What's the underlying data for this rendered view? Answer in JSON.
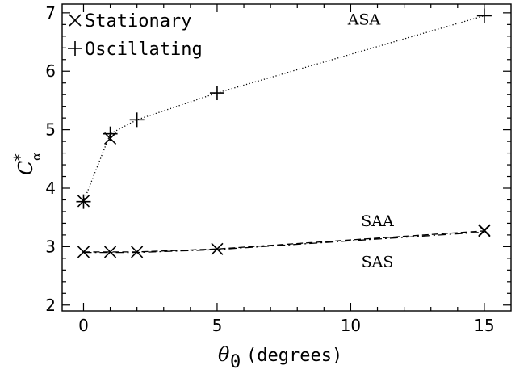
{
  "chart_data": {
    "type": "line",
    "xlabel": "θ0 (degrees)",
    "ylabel": "C*α",
    "xlim": [
      -0.8,
      16
    ],
    "ylim": [
      1.9,
      7.15
    ],
    "xticks": [
      0,
      5,
      10,
      15
    ],
    "yticks": [
      2,
      3,
      4,
      5,
      6,
      7
    ],
    "grid": false,
    "legend_position": "top-left",
    "legend": [
      {
        "marker": "x",
        "label": "Stationary"
      },
      {
        "marker": "+",
        "label": "Oscillating"
      }
    ],
    "series": [
      {
        "name": "Oscillating",
        "marker": "+",
        "line": "dotted",
        "x": [
          0,
          1,
          2,
          5,
          15
        ],
        "y": [
          3.77,
          4.93,
          5.17,
          5.63,
          6.95
        ]
      },
      {
        "name": "Stationary",
        "marker": "x",
        "line": "none",
        "x": [
          0,
          1,
          15
        ],
        "y": [
          3.78,
          4.85,
          3.28
        ]
      },
      {
        "name": "Stationary",
        "marker": "x",
        "line": "dashed",
        "x": [
          0,
          1,
          2,
          5,
          15
        ],
        "y": [
          2.91,
          2.91,
          2.91,
          2.96,
          3.27
        ]
      },
      {
        "name": "",
        "marker": "none",
        "line": "dash-dot",
        "x": [
          0,
          1,
          2,
          5,
          15
        ],
        "y": [
          2.9,
          2.9,
          2.9,
          2.95,
          3.25
        ]
      }
    ],
    "annotations": [
      {
        "text": "ASA",
        "x": 10.5,
        "y": 6.8
      },
      {
        "text": "SAA",
        "x": 11,
        "y": 3.35
      },
      {
        "text": "SAS",
        "x": 11,
        "y": 2.65
      }
    ]
  }
}
